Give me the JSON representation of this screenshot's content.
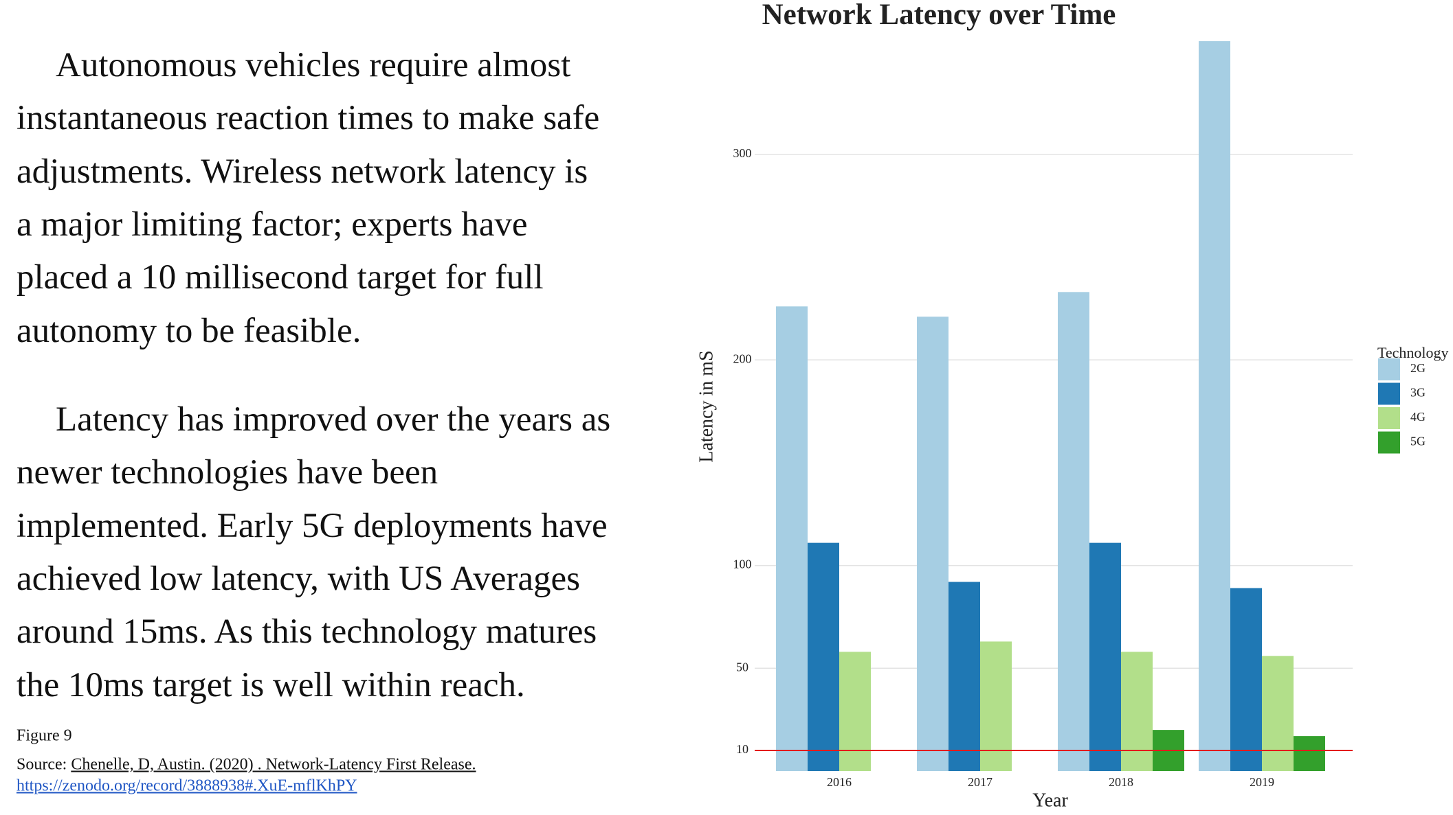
{
  "text": {
    "paragraphs": [
      [
        "Autonomous vehicles require almost",
        "instantaneous reaction times to make safe",
        "adjustments. Wireless network latency is",
        "a major limiting factor; experts have",
        "placed a 10 millisecond target for full",
        "autonomy to be feasible."
      ],
      [
        "Latency has improved over the years as",
        "newer technologies have been",
        "implemented. Early 5G deployments have",
        "achieved low latency, with US Averages",
        "around 15ms. As this technology matures",
        "the 10ms target is well within reach."
      ]
    ],
    "figure_label": "Figure 9",
    "source_prefix": "Source:",
    "source_citation": "Chenelle, D, Austin. (2020) . Network-Latency First Release.",
    "source_url": "https://zenodo.org/record/3888938#.XuE-mflKhPY"
  },
  "chart_data": {
    "type": "bar",
    "title": "Network Latency over Time",
    "x_label": "Year",
    "y_label": "Latency in mS",
    "categories": [
      "2016",
      "2017",
      "2018",
      "2019"
    ],
    "series": [
      {
        "name": "2G",
        "color": "#a6cee3",
        "values": [
          226,
          221,
          233,
          355
        ]
      },
      {
        "name": "3G",
        "color": "#1f78b4",
        "values": [
          111,
          92,
          111,
          89
        ]
      },
      {
        "name": "4G",
        "color": "#b2df8a",
        "values": [
          58,
          63,
          58,
          56
        ]
      },
      {
        "name": "5G",
        "color": "#33a02c",
        "values": [
          null,
          null,
          20,
          17
        ]
      }
    ],
    "ylim": [
      0,
      355
    ],
    "yticks": [
      10,
      50,
      100,
      200,
      300
    ],
    "grid": true,
    "legend_title": "Technology",
    "legend_position": "right",
    "reference_line": {
      "value": 10,
      "color": "#e31a1c"
    }
  }
}
